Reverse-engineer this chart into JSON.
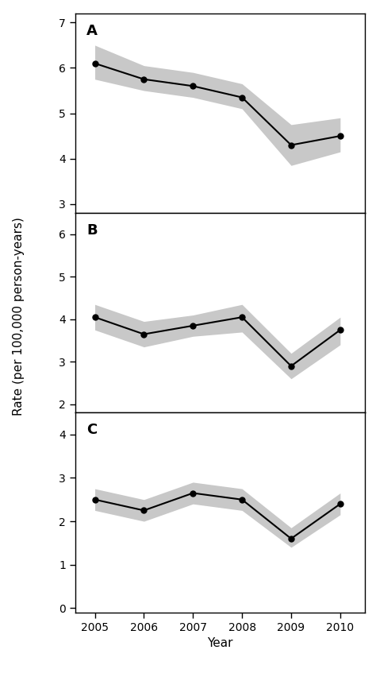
{
  "years": [
    2005,
    2006,
    2007,
    2008,
    2009,
    2010
  ],
  "panel_A": {
    "label": "A",
    "y": [
      6.1,
      5.75,
      5.6,
      5.35,
      4.3,
      4.5
    ],
    "y_lower": [
      5.75,
      5.5,
      5.35,
      5.1,
      3.85,
      4.15
    ],
    "y_upper": [
      6.5,
      6.05,
      5.9,
      5.65,
      4.75,
      4.9
    ],
    "ylim": [
      2.8,
      7.2
    ],
    "yticks": [
      3,
      4,
      5,
      6,
      7
    ]
  },
  "panel_B": {
    "label": "B",
    "y": [
      4.05,
      3.65,
      3.85,
      4.05,
      2.9,
      3.75
    ],
    "y_lower": [
      3.75,
      3.35,
      3.6,
      3.7,
      2.6,
      3.4
    ],
    "y_upper": [
      4.35,
      3.95,
      4.1,
      4.35,
      3.2,
      4.05
    ],
    "ylim": [
      1.8,
      6.5
    ],
    "yticks": [
      2,
      3,
      4,
      5,
      6
    ]
  },
  "panel_C": {
    "label": "C",
    "y": [
      2.5,
      2.25,
      2.65,
      2.5,
      1.6,
      2.4
    ],
    "y_lower": [
      2.25,
      2.0,
      2.4,
      2.25,
      1.4,
      2.15
    ],
    "y_upper": [
      2.75,
      2.5,
      2.9,
      2.75,
      1.85,
      2.65
    ],
    "ylim": [
      -0.1,
      4.5
    ],
    "yticks": [
      0,
      1,
      2,
      3,
      4
    ]
  },
  "xlabel": "Year",
  "ylabel": "Rate (per 100,000 person-years)",
  "line_color": "#000000",
  "fill_color": "#c8c8c8",
  "marker": "o",
  "marker_size": 5,
  "line_width": 1.5,
  "background_color": "#ffffff",
  "spine_color": "#000000",
  "label_fontsize": 11,
  "tick_fontsize": 10,
  "panel_label_fontsize": 13
}
